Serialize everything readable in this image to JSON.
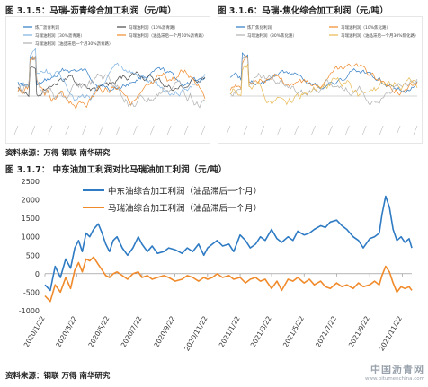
{
  "chart_data": [
    {
      "type": "line",
      "title": "图 3.1.5：马瑞-沥青综合加工利润（元/吨）",
      "legend_position": "top",
      "series": [
        {
          "name": "炼厂沥青利润",
          "color": "#2e7bc4"
        },
        {
          "name": "马瑞油利润（10%沥青路）",
          "color": "#4a4a4a"
        },
        {
          "name": "马瑞油利润（30%沥青路）",
          "color": "#7fb2e0"
        },
        {
          "name": "马瑞油利润（油品滞后一个月10%沥青路）",
          "color": "#f08a2a"
        },
        {
          "name": "马瑞油利润（油品滞后一个月30%沥青路）",
          "color": "#b0b0b0"
        }
      ]
    },
    {
      "type": "line",
      "title": "图 3.1.6：马瑞-焦化综合加工利润（元/吨）",
      "legend_position": "top",
      "series": [
        {
          "name": "炼厂焦化利润",
          "color": "#2e7bc4"
        },
        {
          "name": "马瑞油利润（10%焦化路）",
          "color": "#f08a2a"
        },
        {
          "name": "马瑞油利润（30%焦化路）",
          "color": "#b0b0b0"
        },
        {
          "name": "马瑞油利润（油品滞后一个月30%焦化路）",
          "color": "#e8b850"
        }
      ]
    },
    {
      "type": "line",
      "title": "图 3.1.7：  中东油加工利润对比马瑞油加工利润（元/吨）",
      "ylim": [
        -1000,
        2500
      ],
      "yticks": [
        -1000,
        -500,
        0,
        500,
        1000,
        1500,
        2000,
        2500
      ],
      "grid": false,
      "legend_position": "top-left",
      "xticks": [
        "2020/1/22",
        "2020/3/22",
        "2020/5/22",
        "2020/7/22",
        "2020/9/22",
        "2020/11/22",
        "2021/1/22",
        "2021/3/22",
        "2021/5/22",
        "2021/7/22",
        "2021/9/22",
        "2021/11/22"
      ],
      "x_range": [
        "2020/1/22",
        "2021/12/10"
      ],
      "series": [
        {
          "name": "中东油综合加工利润（油品滞后一个月）",
          "color": "#2e7bc4",
          "x": [
            "2020/1/22",
            "2020/2/1",
            "2020/2/10",
            "2020/2/20",
            "2020/3/1",
            "2020/3/10",
            "2020/3/18",
            "2020/3/25",
            "2020/4/1",
            "2020/4/8",
            "2020/4/15",
            "2020/4/22",
            "2020/5/1",
            "2020/5/8",
            "2020/5/15",
            "2020/5/22",
            "2020/5/29",
            "2020/6/5",
            "2020/6/15",
            "2020/6/25",
            "2020/7/5",
            "2020/7/15",
            "2020/7/22",
            "2020/8/1",
            "2020/8/10",
            "2020/8/20",
            "2020/9/1",
            "2020/9/10",
            "2020/9/22",
            "2020/10/5",
            "2020/10/15",
            "2020/10/25",
            "2020/11/5",
            "2020/11/15",
            "2020/11/22",
            "2020/12/1",
            "2020/12/10",
            "2020/12/20",
            "2021/1/1",
            "2021/1/10",
            "2021/1/22",
            "2021/2/1",
            "2021/2/10",
            "2021/2/20",
            "2021/3/1",
            "2021/3/10",
            "2021/3/22",
            "2021/4/1",
            "2021/4/10",
            "2021/4/22",
            "2021/5/1",
            "2021/5/10",
            "2021/5/22",
            "2021/6/1",
            "2021/6/10",
            "2021/6/22",
            "2021/7/1",
            "2021/7/10",
            "2021/7/22",
            "2021/8/1",
            "2021/8/10",
            "2021/8/22",
            "2021/9/1",
            "2021/9/10",
            "2021/9/22",
            "2021/10/1",
            "2021/10/10",
            "2021/10/15",
            "2021/10/22",
            "2021/10/29",
            "2021/11/5",
            "2021/11/12",
            "2021/11/20",
            "2021/11/27",
            "2021/12/5",
            "2021/12/10"
          ],
          "y": [
            -300,
            -450,
            200,
            -100,
            400,
            150,
            700,
            900,
            600,
            1100,
            1000,
            1200,
            1350,
            1100,
            800,
            600,
            900,
            1000,
            700,
            500,
            700,
            1000,
            800,
            600,
            750,
            550,
            600,
            700,
            650,
            550,
            700,
            600,
            800,
            500,
            700,
            800,
            900,
            750,
            800,
            600,
            1050,
            900,
            700,
            800,
            1000,
            900,
            1200,
            950,
            850,
            1000,
            900,
            1150,
            1050,
            1100,
            1200,
            1300,
            1250,
            1400,
            1450,
            1300,
            1200,
            1000,
            900,
            700,
            950,
            1000,
            1100,
            1600,
            2100,
            1800,
            1200,
            900,
            1000,
            850,
            950,
            700
          ]
        },
        {
          "name": "马瑞油综合加工利润（油品滞后一个月）",
          "color": "#f08a2a",
          "x": [
            "2020/1/22",
            "2020/2/1",
            "2020/2/10",
            "2020/2/20",
            "2020/3/1",
            "2020/3/10",
            "2020/3/18",
            "2020/3/25",
            "2020/4/1",
            "2020/4/8",
            "2020/4/15",
            "2020/4/22",
            "2020/5/1",
            "2020/5/8",
            "2020/5/15",
            "2020/5/22",
            "2020/5/29",
            "2020/6/5",
            "2020/6/15",
            "2020/6/25",
            "2020/7/5",
            "2020/7/15",
            "2020/7/22",
            "2020/8/1",
            "2020/8/10",
            "2020/8/20",
            "2020/9/1",
            "2020/9/10",
            "2020/9/22",
            "2020/10/5",
            "2020/10/15",
            "2020/10/25",
            "2020/11/5",
            "2020/11/15",
            "2020/11/22",
            "2020/12/1",
            "2020/12/10",
            "2020/12/20",
            "2021/1/1",
            "2021/1/10",
            "2021/1/22",
            "2021/2/1",
            "2021/2/10",
            "2021/2/20",
            "2021/3/1",
            "2021/3/10",
            "2021/3/22",
            "2021/4/1",
            "2021/4/10",
            "2021/4/22",
            "2021/5/1",
            "2021/5/10",
            "2021/5/22",
            "2021/6/1",
            "2021/6/10",
            "2021/6/22",
            "2021/7/1",
            "2021/7/10",
            "2021/7/22",
            "2021/8/1",
            "2021/8/10",
            "2021/8/22",
            "2021/9/1",
            "2021/9/10",
            "2021/9/22",
            "2021/10/1",
            "2021/10/10",
            "2021/10/15",
            "2021/10/22",
            "2021/10/29",
            "2021/11/5",
            "2021/11/12",
            "2021/11/20",
            "2021/11/27",
            "2021/12/5",
            "2021/12/10"
          ],
          "y": [
            -600,
            -750,
            -300,
            -500,
            -100,
            -400,
            100,
            300,
            50,
            400,
            350,
            450,
            250,
            100,
            -50,
            -100,
            0,
            50,
            -50,
            -150,
            0,
            50,
            -100,
            -50,
            -150,
            -100,
            -50,
            -100,
            -200,
            -150,
            -50,
            -100,
            -200,
            -100,
            -150,
            -100,
            0,
            -100,
            -50,
            -150,
            -100,
            -250,
            -150,
            -100,
            -200,
            -150,
            -400,
            -200,
            -450,
            -150,
            -200,
            -100,
            -250,
            -150,
            -300,
            -200,
            -350,
            -400,
            -250,
            -350,
            -300,
            -400,
            -250,
            -350,
            -300,
            -200,
            -300,
            -50,
            200,
            50,
            -250,
            -500,
            -350,
            -400,
            -350,
            -450
          ]
        }
      ]
    }
  ],
  "sources": {
    "top": "资料来源：万得  钢联  南华研究",
    "bottom": "资料来源：钢联  万得  南华研究"
  },
  "watermark": {
    "main": "中国沥青网",
    "sub": "www.bitumenchina.com"
  }
}
